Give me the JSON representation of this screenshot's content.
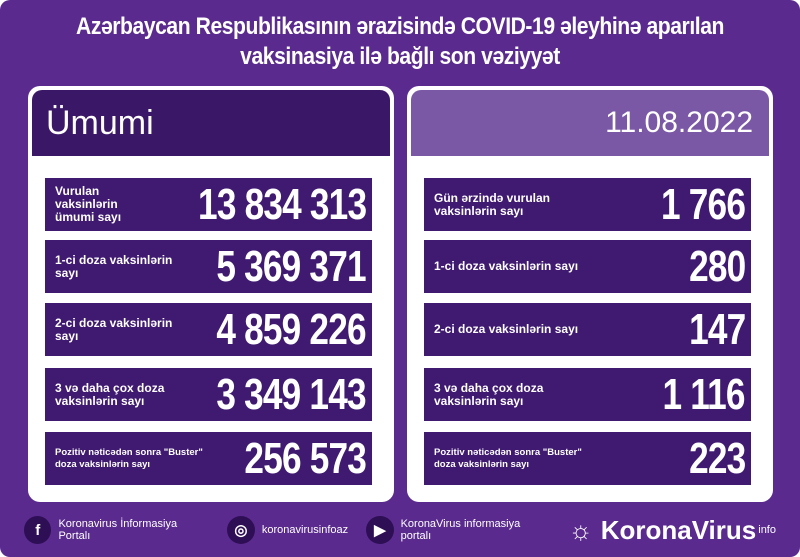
{
  "title": {
    "line1": "Azərbaycan Respublikasının ərazisində COVID-19 əleyhinə aparılan",
    "line2": "vaksinasiya ilə bağlı son vəziyyət"
  },
  "left": {
    "heading": "Ümumi",
    "rows": [
      {
        "label": "Vurulan vaksinlərin ümumi sayı",
        "value": "13 834 313"
      },
      {
        "label": "1-ci doza vaksinlərin sayı",
        "value": "5 369 371"
      },
      {
        "label": "2-ci doza vaksinlərin sayı",
        "value": "4 859 226"
      },
      {
        "label": "3 və daha çox doza vaksinlərin sayı",
        "value": "3 349 143"
      },
      {
        "label": "Pozitiv nəticədən sonra \"Buster\" doza vaksinlərin sayı",
        "value": "256 573"
      }
    ]
  },
  "right": {
    "date": "11.08.2022",
    "rows": [
      {
        "label": "Gün ərzində vurulan vaksinlərin sayı",
        "value": "1 766"
      },
      {
        "label": "1-ci doza vaksinlərin sayı",
        "value": "280"
      },
      {
        "label": "2-ci doza vaksinlərin sayı",
        "value": "147"
      },
      {
        "label": "3 və daha çox doza vaksinlərin sayı",
        "value": "1 116"
      },
      {
        "label": "Pozitiv nəticədən sonra \"Buster\" doza vaksinlərin sayı",
        "value": "223"
      }
    ]
  },
  "footer": {
    "facebook": "Koronavirus İnformasiya Portalı",
    "instagram": "koronavirusinfoaz",
    "youtube": "KoronaVirus informasiya portalı",
    "brand": "KoronaVirus",
    "brand_sup": "info"
  },
  "colors": {
    "background": "#5a2a8e",
    "bar": "#3f1a70",
    "date_box": "#7a58a6"
  }
}
